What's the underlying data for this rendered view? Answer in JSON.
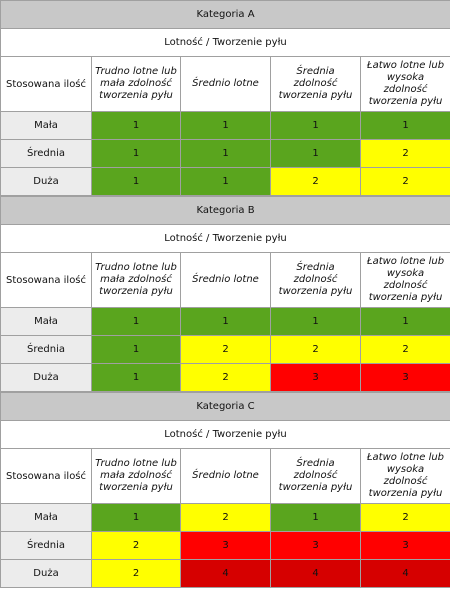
{
  "blocks": [
    {
      "title": "Kategoria A",
      "subtitle": "Lotność / Tworzenie pyłu",
      "row_header": "Stosowana ilość",
      "columns": [
        "Trudno lotne lub mała zdolność tworzenia pyłu",
        "Średnio lotne",
        "Średnia zdolność tworzenia pyłu",
        "Łatwo lotne lub wysoka zdolność tworzenia pyłu"
      ],
      "rows": [
        {
          "label": "Mała",
          "values": [
            1,
            1,
            1,
            1
          ]
        },
        {
          "label": "Średnia",
          "values": [
            1,
            1,
            1,
            2
          ]
        },
        {
          "label": "Duża",
          "values": [
            1,
            1,
            2,
            2
          ]
        }
      ]
    },
    {
      "title": "Kategoria B",
      "subtitle": "Lotność / Tworzenie pyłu",
      "row_header": "Stosowana ilość",
      "columns": [
        "Trudno lotne lub mała zdolność tworzenia pyłu",
        "Średnio lotne",
        "Średnia zdolność tworzenia pyłu",
        "Łatwo lotne lub wysoka zdolność tworzenia pyłu"
      ],
      "rows": [
        {
          "label": "Mała",
          "values": [
            1,
            1,
            1,
            1
          ]
        },
        {
          "label": "Średnia",
          "values": [
            1,
            2,
            2,
            2
          ]
        },
        {
          "label": "Duża",
          "values": [
            1,
            2,
            3,
            3
          ]
        }
      ]
    },
    {
      "title": "Kategoria C",
      "subtitle": "Lotność / Tworzenie pyłu",
      "row_header": "Stosowana ilość",
      "columns": [
        "Trudno lotne lub mała zdolność tworzenia pyłu",
        "Średnio lotne",
        "Średnia zdolność tworzenia pyłu",
        "Łatwo lotne lub wysoka zdolność tworzenia pyłu"
      ],
      "rows": [
        {
          "label": "Mała",
          "values": [
            1,
            2,
            1,
            2
          ]
        },
        {
          "label": "Średnia",
          "values": [
            2,
            3,
            3,
            3
          ]
        },
        {
          "label": "Duża",
          "values": [
            2,
            4,
            4,
            4
          ]
        }
      ]
    }
  ],
  "level_colors": {
    "1": "#5aa51e",
    "2": "#ffff00",
    "3": "#ff0000",
    "4": "#d60000"
  }
}
